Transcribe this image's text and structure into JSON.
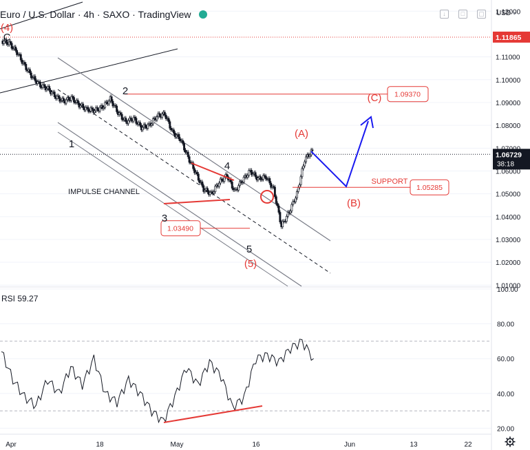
{
  "header": {
    "title": "Euro / U.S. Dollar · 4h · SAXO · TradingView",
    "currency": "USD"
  },
  "rsi": {
    "label": "RSI",
    "value": "59.27"
  },
  "colors": {
    "accent_red": "#e53935",
    "wave_blue": "#1a1af0",
    "grid": "#f0f3fa",
    "price_red_badge": "#e53935",
    "price_current_badge": "#131722"
  },
  "chart_data": [
    {
      "type": "line",
      "name": "price",
      "y_axis_ticks": [
        "1.13000",
        "1.11000",
        "1.10000",
        "1.09000",
        "1.08000",
        "1.07000",
        "1.06000",
        "1.05000",
        "1.04000",
        "1.03000",
        "1.02000",
        "1.01000"
      ],
      "ylim": [
        1.0095,
        1.1325
      ],
      "x_axis_ticks": [
        "Apr",
        "18",
        "May",
        "16",
        "Jun",
        "13",
        "22"
      ],
      "price_badges": [
        {
          "price": 1.11865,
          "label": "1.11865"
        },
        {
          "price": 1.06729,
          "label": "1.06729",
          "sub": "38:18"
        }
      ],
      "x": [
        0,
        2,
        4,
        6,
        8,
        10,
        12,
        14,
        16,
        18,
        20,
        22,
        24,
        26,
        28,
        30,
        32,
        34,
        36,
        38,
        40,
        42,
        44,
        46,
        48,
        50,
        52,
        54,
        56,
        58,
        60,
        62,
        64,
        66,
        68,
        70,
        72,
        74,
        76,
        78,
        80
      ],
      "close": [
        1.117,
        1.116,
        1.112,
        1.106,
        1.101,
        1.0975,
        1.096,
        1.0925,
        1.0905,
        1.092,
        1.089,
        1.087,
        1.0865,
        1.088,
        1.0915,
        1.0855,
        1.0815,
        1.083,
        1.079,
        1.08,
        1.084,
        1.085,
        1.077,
        1.074,
        1.066,
        1.059,
        1.052,
        1.05,
        1.055,
        1.058,
        1.051,
        1.056,
        1.06,
        1.0565,
        1.0575,
        1.052,
        1.0359,
        1.042,
        1.05,
        1.065,
        1.069
      ],
      "waves": [
        {
          "label": "(4)",
          "x": 0,
          "price": 1.13
        },
        {
          "label": "C",
          "x": 1,
          "price": 1.121
        },
        {
          "label": "2",
          "x": 17,
          "price": 1.099
        },
        {
          "label": "1",
          "x": 11,
          "price": 1.076
        },
        {
          "label": "4",
          "x": 34,
          "price": 1.063
        },
        {
          "label": "3",
          "x": 27,
          "price": 1.041
        },
        {
          "label": "5",
          "x": 41,
          "price": 1.0295
        },
        {
          "label": "(5)",
          "x": 41,
          "price": 1.023
        },
        {
          "label": "(A)",
          "x": 50,
          "price": 1.0825
        },
        {
          "label": "(B)",
          "x": 59,
          "price": 1.05
        },
        {
          "label": "(C)",
          "x": 62,
          "price": 1.094
        }
      ],
      "levels": [
        {
          "label": "1.09370",
          "price": 1.0937,
          "tag": "(C)"
        },
        {
          "label": "1.05285",
          "price": 1.05285,
          "tag": "SUPPORT"
        },
        {
          "label": "1.03490",
          "price": 1.0349
        }
      ],
      "annotations": [
        {
          "text": "IMPULSE CHANNEL"
        }
      ],
      "projection": [
        {
          "x": 50,
          "price": 1.072
        },
        {
          "x": 56,
          "price": 1.056
        },
        {
          "x": 62,
          "price": 1.086
        }
      ]
    },
    {
      "type": "line",
      "name": "RSI",
      "y_axis_ticks": [
        "100.00",
        "80.00",
        "60.00",
        "40.00",
        "20.00"
      ],
      "ylim": [
        17,
        100
      ],
      "upper_band": 70,
      "lower_band": 30,
      "x": [
        0,
        2,
        4,
        6,
        8,
        10,
        12,
        14,
        16,
        18,
        20,
        22,
        24,
        26,
        28,
        30,
        32,
        34,
        36,
        38,
        40,
        42,
        44,
        46,
        48,
        50,
        52,
        54
      ],
      "values": [
        64,
        48,
        38,
        33,
        48,
        40,
        55,
        45,
        60,
        40,
        35,
        48,
        40,
        30,
        24,
        38,
        55,
        45,
        58,
        50,
        32,
        38,
        60,
        62,
        58,
        66,
        70,
        60
      ]
    }
  ]
}
